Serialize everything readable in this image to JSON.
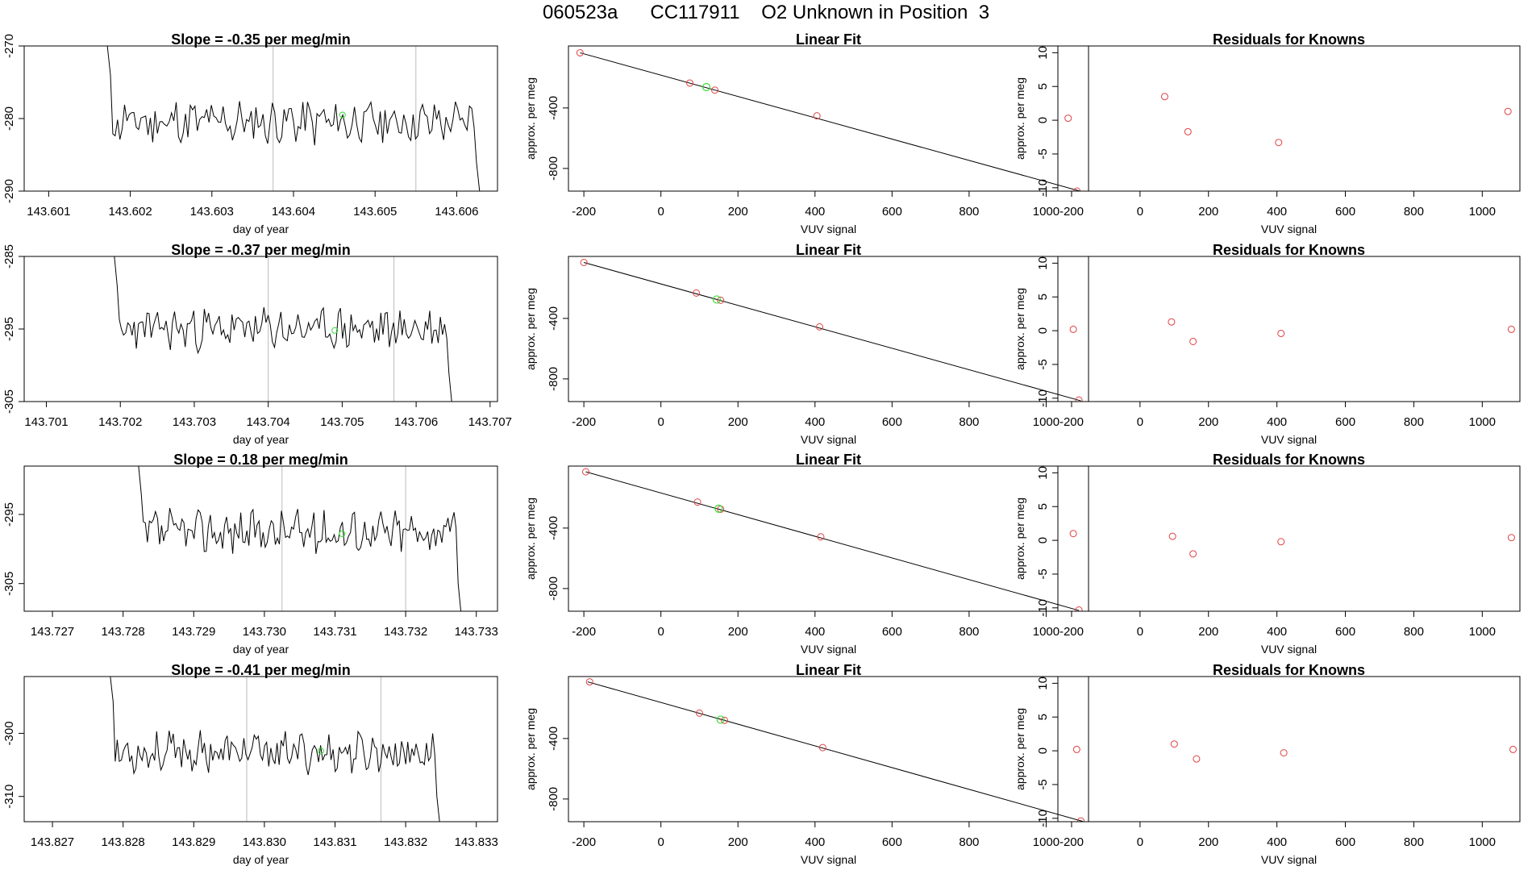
{
  "page": {
    "title": "060523a      CC117911    O2 Unknown in Position  3"
  },
  "chart_data": [
    {
      "type": "line",
      "title": "Slope =  -0.35  per meg/min",
      "xlabel": "day of year",
      "ylabel": "approx. per meg",
      "xlim": [
        143.6007,
        143.6065
      ],
      "ylim": [
        -290,
        -270
      ],
      "xticks": [
        "143.601",
        "143.602",
        "143.603",
        "143.604",
        "143.605",
        "143.606"
      ],
      "yticks": [
        "-270",
        "-280",
        "-290"
      ],
      "vlines": [
        143.60375,
        143.6055
      ],
      "series_start": 143.6017,
      "series_end": 143.6063,
      "series_center": -280.5,
      "series_amp": 2.6,
      "seed": 11,
      "marker": {
        "x": 143.6046,
        "y": -279.5
      }
    },
    {
      "type": "scatter",
      "title": "Linear Fit",
      "xlabel": "VUV signal",
      "ylabel": "approx. per meg",
      "xlim": [
        -240,
        1110
      ],
      "ylim": [
        -950,
        10
      ],
      "xticks": [
        "-200",
        "0",
        "200",
        "400",
        "600",
        "800",
        "1000"
      ],
      "yticks": [
        "-400",
        "-800"
      ],
      "fit_line": [
        [
          -210,
          -35
        ],
        [
          1095,
          -955
        ]
      ],
      "points": [
        [
          -210,
          -35
        ],
        [
          75,
          -235
        ],
        [
          140,
          -282
        ],
        [
          405,
          -452
        ],
        [
          1080,
          -950
        ]
      ],
      "unknown": [
        [
          118,
          -262
        ]
      ]
    },
    {
      "type": "scatter",
      "title": "Residuals for Knowns",
      "xlabel": "VUV signal",
      "ylabel": "approx. per meg",
      "xlim": [
        -240,
        1110
      ],
      "ylim": [
        -10.5,
        11
      ],
      "xticks": [
        "-200",
        "0",
        "200",
        "400",
        "600",
        "800",
        "1000"
      ],
      "yticks": [
        "10",
        "5",
        "0",
        "-5",
        "-10"
      ],
      "points": [
        [
          -210,
          0.3
        ],
        [
          72,
          3.5
        ],
        [
          140,
          -1.7
        ],
        [
          405,
          -3.3
        ],
        [
          1075,
          1.3
        ]
      ]
    },
    {
      "type": "line",
      "title": "Slope =  -0.37  per meg/min",
      "xlabel": "day of year",
      "ylabel": "approx. per meg",
      "xlim": [
        143.7007,
        143.7071
      ],
      "ylim": [
        -305,
        -285
      ],
      "xticks": [
        "143.701",
        "143.702",
        "143.703",
        "143.704",
        "143.705",
        "143.706",
        "143.707"
      ],
      "yticks": [
        "-285",
        "-295",
        "-305"
      ],
      "vlines": [
        143.704,
        143.7057
      ],
      "series_start": 143.7019,
      "series_end": 143.7065,
      "series_center": -295.0,
      "series_amp": 2.4,
      "seed": 23,
      "marker": {
        "x": 143.7049,
        "y": -295.2
      }
    },
    {
      "type": "scatter",
      "title": "Linear Fit",
      "xlabel": "VUV signal",
      "ylabel": "approx. per meg",
      "xlim": [
        -240,
        1110
      ],
      "ylim": [
        -950,
        10
      ],
      "xticks": [
        "-200",
        "0",
        "200",
        "400",
        "600",
        "800",
        "1000"
      ],
      "yticks": [
        "-400",
        "-800"
      ],
      "fit_line": [
        [
          -200,
          -30
        ],
        [
          1090,
          -945
        ]
      ],
      "points": [
        [
          -200,
          -30
        ],
        [
          92,
          -232
        ],
        [
          155,
          -280
        ],
        [
          412,
          -456
        ],
        [
          1085,
          -940
        ]
      ],
      "unknown": [
        [
          145,
          -275
        ]
      ]
    },
    {
      "type": "scatter",
      "title": "Residuals for Knowns",
      "xlabel": "VUV signal",
      "ylabel": "approx. per meg",
      "xlim": [
        -240,
        1110
      ],
      "ylim": [
        -10.5,
        11
      ],
      "xticks": [
        "-200",
        "0",
        "200",
        "400",
        "600",
        "800",
        "1000"
      ],
      "yticks": [
        "10",
        "5",
        "0",
        "-5",
        "-10"
      ],
      "points": [
        [
          -195,
          0.2
        ],
        [
          92,
          1.3
        ],
        [
          155,
          -1.6
        ],
        [
          412,
          -0.4
        ],
        [
          1085,
          0.2
        ]
      ]
    },
    {
      "type": "line",
      "title": "Slope =  0.18  per meg/min",
      "xlabel": "day of year",
      "ylabel": "approx. per meg",
      "xlim": [
        143.7266,
        143.7333
      ],
      "ylim": [
        -309,
        -288
      ],
      "xticks": [
        "143.727",
        "143.728",
        "143.729",
        "143.730",
        "143.731",
        "143.732",
        "143.733"
      ],
      "yticks": [
        "-295",
        "-305"
      ],
      "vlines": [
        143.73025,
        143.732
      ],
      "series_start": 143.7282,
      "series_end": 143.7328,
      "series_center": -297.5,
      "series_amp": 2.6,
      "seed": 37,
      "marker": {
        "x": 143.7311,
        "y": -297.8
      }
    },
    {
      "type": "scatter",
      "title": "Linear Fit",
      "xlabel": "VUV signal",
      "ylabel": "approx. per meg",
      "xlim": [
        -240,
        1110
      ],
      "ylim": [
        -950,
        10
      ],
      "xticks": [
        "-200",
        "0",
        "200",
        "400",
        "600",
        "800",
        "1000"
      ],
      "yticks": [
        "-400",
        "-800"
      ],
      "fit_line": [
        [
          -195,
          -28
        ],
        [
          1085,
          -945
        ]
      ],
      "points": [
        [
          -195,
          -28
        ],
        [
          95,
          -228
        ],
        [
          155,
          -275
        ],
        [
          415,
          -458
        ],
        [
          1085,
          -942
        ]
      ],
      "unknown": [
        [
          150,
          -272
        ]
      ]
    },
    {
      "type": "scatter",
      "title": "Residuals for Knowns",
      "xlabel": "VUV signal",
      "ylabel": "approx. per meg",
      "xlim": [
        -240,
        1110
      ],
      "ylim": [
        -10.5,
        11
      ],
      "xticks": [
        "-200",
        "0",
        "200",
        "400",
        "600",
        "800",
        "1000"
      ],
      "yticks": [
        "10",
        "5",
        "0",
        "-5",
        "-10"
      ],
      "points": [
        [
          -195,
          1.0
        ],
        [
          95,
          0.6
        ],
        [
          155,
          -2.0
        ],
        [
          412,
          -0.2
        ],
        [
          1085,
          0.4
        ]
      ]
    },
    {
      "type": "line",
      "title": "Slope =  -0.41  per meg/min",
      "xlabel": "day of year",
      "ylabel": "approx. per meg",
      "xlim": [
        143.8266,
        143.8333
      ],
      "ylim": [
        -314,
        -291
      ],
      "xticks": [
        "143.827",
        "143.828",
        "143.829",
        "143.830",
        "143.831",
        "143.832",
        "143.833"
      ],
      "yticks": [
        "-300",
        "-310"
      ],
      "vlines": [
        143.82975,
        143.83165
      ],
      "series_start": 143.8278,
      "series_end": 143.8325,
      "series_center": -303.0,
      "series_amp": 2.6,
      "seed": 53,
      "marker": {
        "x": 143.8308,
        "y": -302.8
      }
    },
    {
      "type": "scatter",
      "title": "Linear Fit",
      "xlabel": "VUV signal",
      "ylabel": "approx. per meg",
      "xlim": [
        -240,
        1110
      ],
      "ylim": [
        -950,
        10
      ],
      "xticks": [
        "-200",
        "0",
        "200",
        "400",
        "600",
        "800",
        "1000"
      ],
      "yticks": [
        "-400",
        "-800"
      ],
      "fit_line": [
        [
          -190,
          -25
        ],
        [
          1095,
          -948
        ]
      ],
      "points": [
        [
          -185,
          -25
        ],
        [
          100,
          -232
        ],
        [
          165,
          -280
        ],
        [
          420,
          -460
        ],
        [
          1090,
          -945
        ]
      ],
      "unknown": [
        [
          155,
          -275
        ]
      ]
    },
    {
      "type": "scatter",
      "title": "Residuals for Knowns",
      "xlabel": "VUV signal",
      "ylabel": "approx. per meg",
      "xlim": [
        -240,
        1110
      ],
      "ylim": [
        -10.5,
        11
      ],
      "xticks": [
        "-200",
        "0",
        "200",
        "400",
        "600",
        "800",
        "1000"
      ],
      "yticks": [
        "10",
        "5",
        "0",
        "-5",
        "-10"
      ],
      "points": [
        [
          -185,
          0.2
        ],
        [
          100,
          1.0
        ],
        [
          165,
          -1.2
        ],
        [
          420,
          -0.3
        ],
        [
          1090,
          0.2
        ]
      ]
    }
  ],
  "colors": {
    "line": "#000000",
    "known": "#e04040",
    "unknown": "#33dd33",
    "guide": "#bbbbbb"
  }
}
